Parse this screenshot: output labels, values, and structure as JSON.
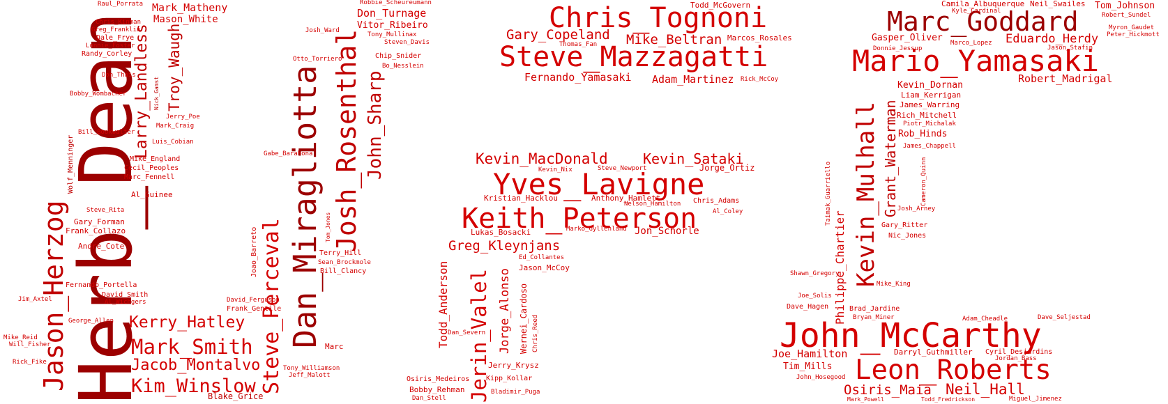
{
  "colors": {
    "bright": "#d40000",
    "mid": "#c00000",
    "dark": "#9c0000"
  },
  "words": {
    "herb_dean": "Herb_Dean",
    "jason_herzog": "Jason_Herzog",
    "larry_landless": "Larry_Landless",
    "troy_waugh": "Troy_Waugh",
    "kerry_hatley": "Kerry_Hatley",
    "mark_smith": "Mark_Smith",
    "jacob_montalvo": "Jacob_Montalvo",
    "kim_winslow": "Kim_Winslow",
    "blake_grice": "Blake_Grice",
    "mark_matheny": "Mark_Matheny",
    "mason_white": "Mason_White",
    "raul_porrata": "Raul_Porrata",
    "chris_kinman": "Chris_Kinman",
    "greg_franklin": "Greg_Franklin",
    "dale_frye": "Dale_Frye",
    "lonnie_foster": "Lonnie_Foster",
    "randy_corley": "Randy_Corley",
    "don_thais": "Don_Thais",
    "nick_gamst": "Nick_Gamst",
    "bobby_wombacher": "Bobby_Wombacher",
    "jerry_poe": "Jerry_Poe",
    "mark_craig": "Mark_Craig",
    "bill_bookwalter": "Bill_Bookwalter",
    "luis_cobian": "Luis_Cobian",
    "wolf_menninger": "Wolf_Menninger",
    "mike_england": "Mike_England",
    "cecil_peoples": "Cecil_Peoples",
    "marc_fennell": "Marc_Fennell",
    "al_guinee": "Al_Guinee",
    "steve_rita": "Steve_Rita",
    "gary_forman": "Gary_Forman",
    "frank_collazo": "Frank_Collazo",
    "andre_cote": "Andre_Cote",
    "fernando_portella": "Fernando_Portella",
    "david_smith": "David_Smith",
    "al_wichgers": "Al_Wichgers",
    "jim_axtel": "Jim_Axtel",
    "george_allen": "George_Allen",
    "mike_reid": "Mike_Reid",
    "will_fisher": "Will_Fisher",
    "rick_fike": "Rick_Fike",
    "dan_miragliotta": "Dan_Miragliotta",
    "josh_rosenthal": "Josh_Rosenthal",
    "john_sharp": "John_Sharp",
    "steve_perceval": "Steve_Perceval",
    "joao_barreto": "Joao_Barreto",
    "tom_jones": "Tom_Jones",
    "robbie_scheureumann": "Robbie_Scheureumann",
    "don_turnage": "Don_Turnage",
    "vitor_ribeiro": "Vitor_Ribeiro",
    "josh_ward": "Josh_Ward",
    "tony_mullinax": "Tony_Mullinax",
    "steven_davis": "Steven_Davis",
    "otto_torriero": "Otto_Torriero",
    "chip_snider": "Chip_Snider",
    "bo_nesslein": "Bo_Nesslein",
    "gabe_barahona": "Gabe_Barahona",
    "terry_hill": "Terry_Hill",
    "sean_brockmole": "Sean_Brockmole",
    "bill_clancy": "Bill_Clancy",
    "david_ferguson": "David_Ferguson",
    "frank_gentile": "Frank_Gentile",
    "marc": "Marc",
    "tony_williamson": "Tony_Williamson",
    "jeff_malott": "Jeff_Malott",
    "todd_mcgovern": "Todd_McGovern",
    "chris_tognoni": "Chris_Tognoni",
    "gary_copeland": "Gary_Copeland",
    "mike_beltran": "Mike_Beltran",
    "marcos_rosales": "Marcos_Rosales",
    "thomas_fan": "Thomas_Fan",
    "steve_mazzagatti": "Steve_Mazzagatti",
    "fernando_yamasaki": "Fernando_Yamasaki",
    "adam_martinez": "Adam_Martinez",
    "rick_mccoy": "Rick_McCoy",
    "kevin_macdonald": "Kevin_MacDonald",
    "kevin_sataki": "Kevin_Sataki",
    "kevin_nix": "Kevin_Nix",
    "steve_newport": "Steve_Newport",
    "jorge_ortiz": "Jorge_Ortiz",
    "yves_lavigne": "Yves_Lavigne",
    "kristian_hacklou": "Kristian_Hacklou",
    "anthony_hamlett": "Anthony_Hamlett",
    "nelson_hamilton": "Nelson_Hamilton",
    "chris_adams": "Chris_Adams",
    "al_coley": "Al_Coley",
    "keith_peterson": "Keith_Peterson",
    "lukas_bosacki": "Lukas_Bosacki",
    "marko_gyllenland": "Marko_Gyllenland",
    "jon_schorle": "Jon_Schorle",
    "greg_kleynjans": "Greg_Kleynjans",
    "ed_collantes": "Ed_Collantes",
    "jason_mccoy": "Jason_McCoy",
    "todd_anderson": "Todd_Anderson",
    "jerin_valel": "Jerin_Valel",
    "jorge_alonso": "Jorge_Alonso",
    "wernei_cardoso": "Wernei_Cardoso",
    "chris_reed": "Chris_Reed",
    "jerry_krysz": "Jerry_Krysz",
    "dan_severn": "Dan_Severn",
    "osiris_medeiros": "Osiris_Medeiros",
    "kipp_kollar": "Kipp_Kollar",
    "bobby_rehman": "Bobby_Rehman",
    "bladimir_puga": "Bladimir_Puga",
    "dan_stell": "Dan_Stell",
    "marc_goddard": "Marc_Goddard",
    "camila_albuquerque": "Camila_Albuquerque",
    "kyle_cardinal": "Kyle_Cardinal",
    "neil_swailes": "Neil_Swailes",
    "tom_johnson": "Tom_Johnson",
    "robert_sundel": "Robert_Sundel",
    "gasper_oliver": "Gasper_Oliver",
    "eduardo_herdy": "Eduardo_Herdy",
    "myron_gaudet": "Myron_Gaudet",
    "peter_hickmott": "Peter_Hickmott",
    "donnie_jessup": "Donnie_Jessup",
    "marco_lopez": "Marco_Lopez",
    "jason_stafin": "Jason_Stafin",
    "mario_yamasaki": "Mario_Yamasaki",
    "robert_madrigal": "Robert_Madrigal",
    "kevin_dornan": "Kevin_Dornan",
    "liam_kerrigan": "Liam_Kerrigan",
    "james_warring": "James_Warring",
    "rich_mitchell": "Rich_Mitchell",
    "piotr_michalak": "Piotr_Michalak",
    "rob_hinds": "Rob_Hinds",
    "james_chappell": "James_Chappell",
    "grant_waterman": "Grant_Waterman",
    "kevin_mulhall": "Kevin_Mulhall",
    "cameron_quinn": "Cameron_Quinn",
    "taimak_guarriello": "Taimak_Guarriello",
    "philippe_chartier": "Philippe_Chartier",
    "josh_arney": "Josh_Arney",
    "gary_ritter": "Gary_Ritter",
    "nic_jones": "Nic_Jones",
    "shawn_gregory": "Shawn_Gregory",
    "mike_king": "Mike_King",
    "joe_solis": "Joe_Solis",
    "dave_hagen": "Dave_Hagen",
    "brad_jardine": "Brad_Jardine",
    "bryan_miner": "Bryan_Miner",
    "adam_cheadle": "Adam_Cheadle",
    "dave_seljestad": "Dave_Seljestad",
    "john_mccarthy": "John_McCarthy",
    "joe_hamilton": "Joe_Hamilton",
    "darryl_guthmiller": "Darryl_Guthmiller",
    "cyril_desjardins": "Cyril_Desjardins",
    "jordan_bass": "Jordan_Bass",
    "tim_mills": "Tim_Mills",
    "leon_roberts": "Leon_Roberts",
    "john_hosegood": "John_Hosegood",
    "osiris_maia": "Osiris_Maia",
    "neil_hall": "Neil_Hall",
    "mark_powell": "Mark_Powell",
    "todd_fredrickson": "Todd_Fredrickson",
    "miguel_jimenez": "Miguel_Jimenez"
  }
}
